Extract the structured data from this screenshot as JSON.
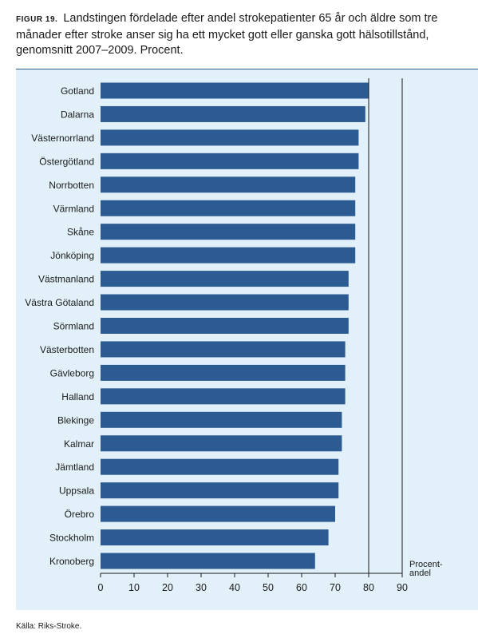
{
  "caption": {
    "figure_label": "FIGUR 19.",
    "text": "Landstingen fördelade efter andel strokepatienter 65 år och äldre som tre månader efter stroke anser sig ha ett mycket gott eller ganska gott hälsotillstånd, genomsnitt 2007–2009. Procent."
  },
  "source": "Källa: Riks-Stroke.",
  "colors": {
    "bar": "#2b5b92",
    "panel": "#e1f0f9",
    "axis": "#1a1a1a"
  },
  "chart_data": {
    "type": "bar",
    "orientation": "horizontal",
    "categories": [
      "Gotland",
      "Dalarna",
      "Västernorrland",
      "Östergötland",
      "Norrbotten",
      "Värmland",
      "Skåne",
      "Jönköping",
      "Västmanland",
      "Västra Götaland",
      "Sörmland",
      "Västerbotten",
      "Gävleborg",
      "Halland",
      "Blekinge",
      "Kalmar",
      "Jämtland",
      "Uppsala",
      "Örebro",
      "Stockholm",
      "Kronoberg"
    ],
    "values": [
      80,
      79,
      77,
      77,
      76,
      76,
      76,
      76,
      74,
      74,
      74,
      73,
      73,
      73,
      72,
      72,
      71,
      71,
      70,
      68,
      64
    ],
    "xticks": [
      0,
      10,
      20,
      30,
      40,
      50,
      60,
      70,
      80,
      90
    ],
    "xlim": [
      0,
      90
    ],
    "xlabel": "Procent-\nandel",
    "grid": false,
    "reference_line": 80
  }
}
